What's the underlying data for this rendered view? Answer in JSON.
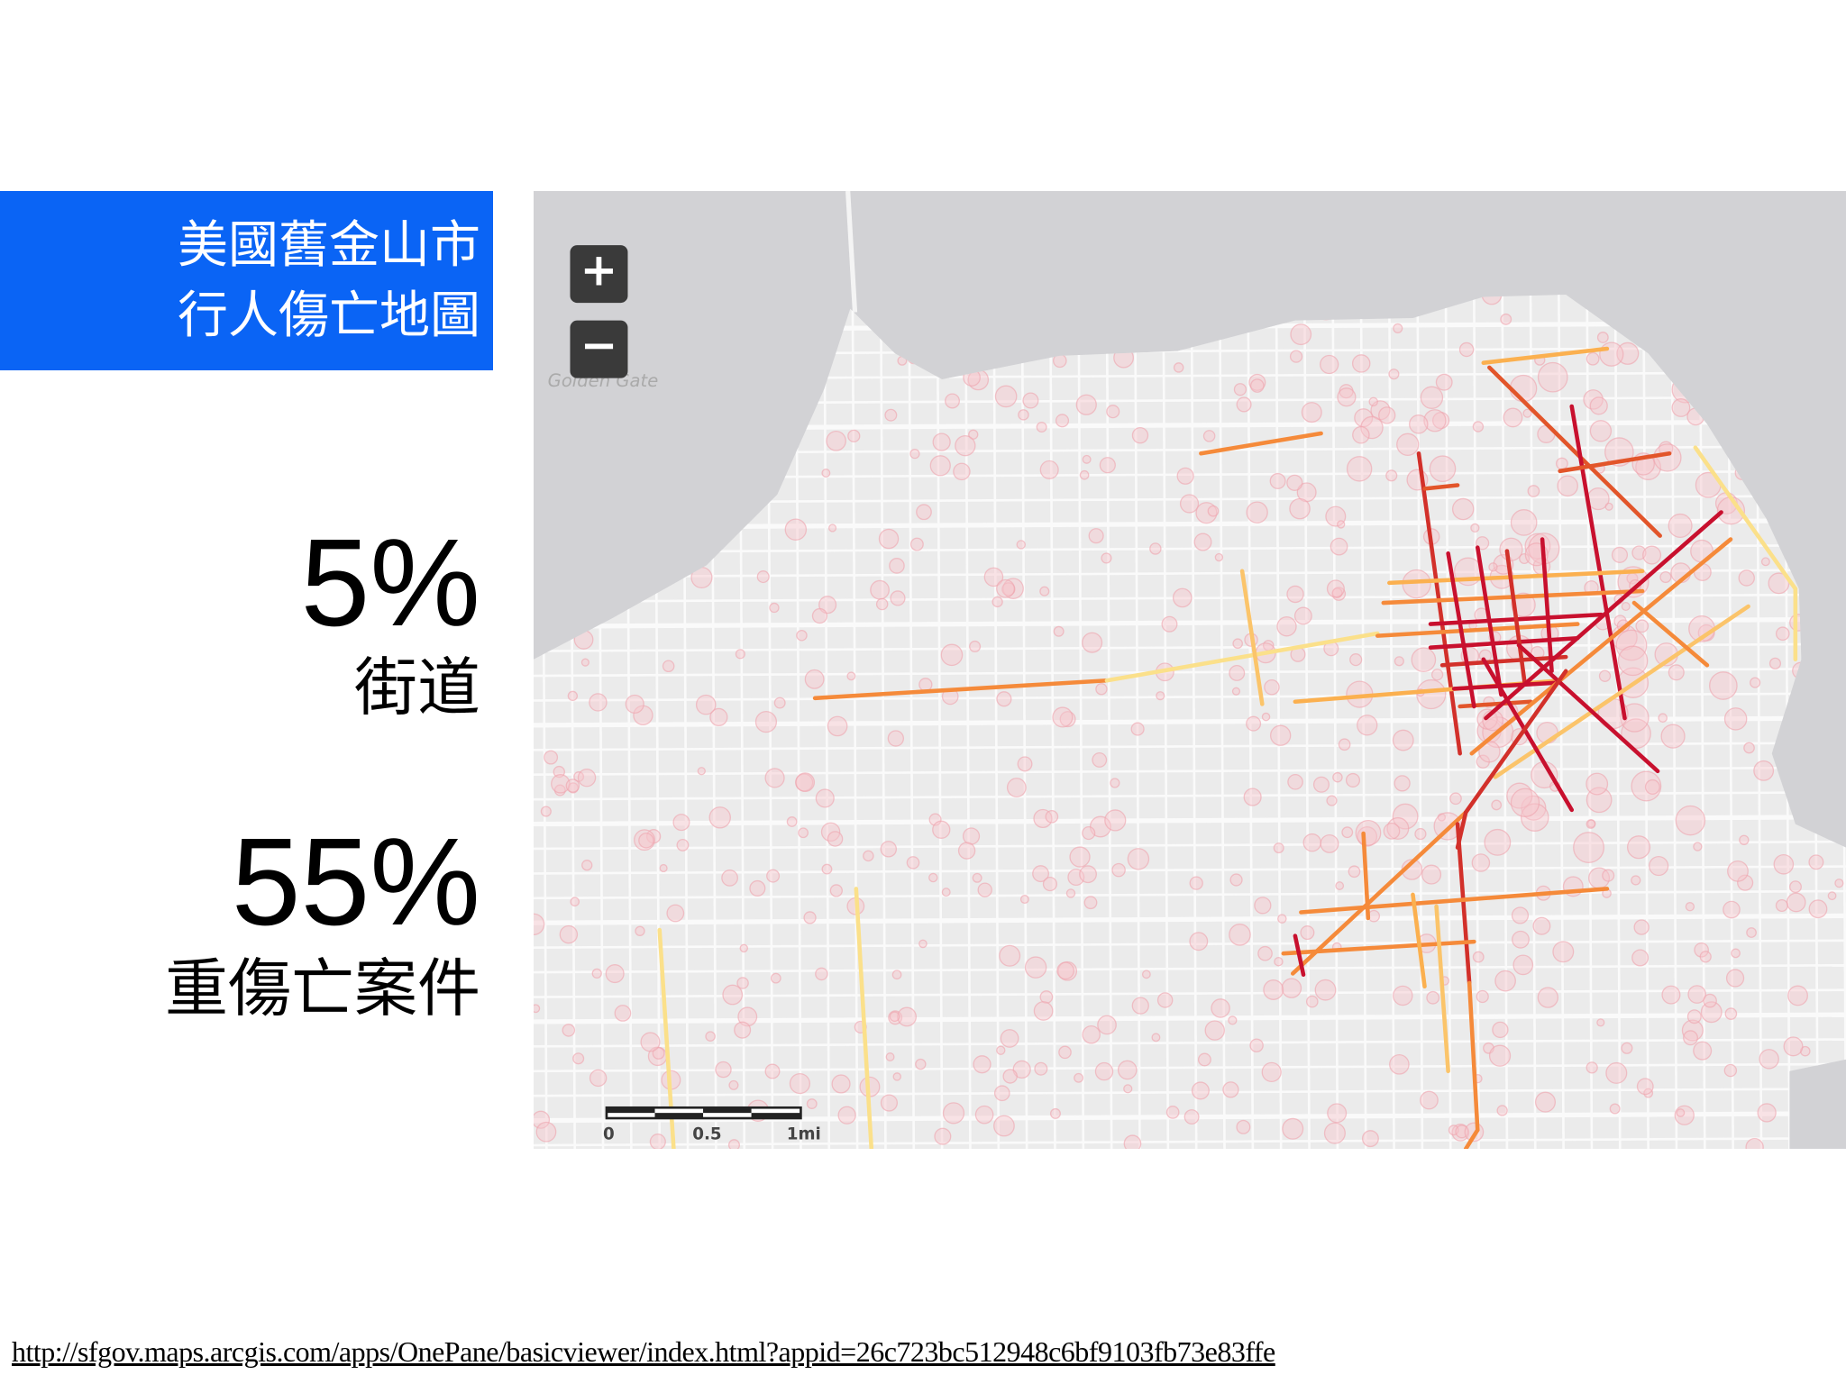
{
  "title": {
    "lines": [
      "美國舊金山市",
      "行人傷亡地圖"
    ]
  },
  "stats": [
    {
      "value": "5%",
      "label": "街道"
    },
    {
      "value": "55%",
      "label": "重傷亡案件"
    }
  ],
  "map": {
    "zoom_in": "+",
    "zoom_out": "−",
    "place_label": "Golden Gate",
    "scale": [
      "0",
      "0.5",
      "1mi"
    ]
  },
  "source_url": "http://sfgov.maps.arcgis.com/apps/OnePane/basicviewer/index.html?appid=26c723bc512948c6bf9103fb73e83ffe"
}
